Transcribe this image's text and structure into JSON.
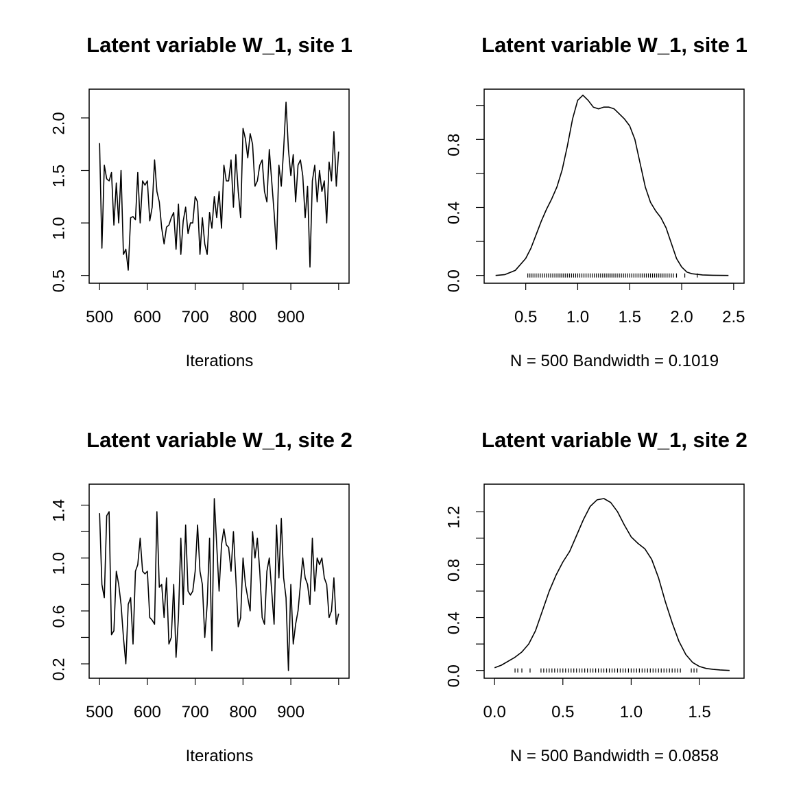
{
  "chart_data": [
    {
      "type": "line",
      "title": "Latent variable W_1, site 1",
      "xlabel": "Iterations",
      "ylabel": "",
      "xlim": [
        500,
        1000
      ],
      "ylim": [
        0.5,
        2.2
      ],
      "x_ticks": [
        500,
        600,
        700,
        800,
        900
      ],
      "y_ticks": [
        0.5,
        1.0,
        1.5,
        2.0
      ],
      "x_tick_labels": [
        "500",
        "600",
        "700",
        "800",
        "900"
      ],
      "y_tick_labels": [
        "0.5",
        "1.0",
        "1.5",
        "2.0"
      ],
      "grid": false,
      "series": [
        {
          "x": [
            500,
            505,
            510,
            515,
            520,
            525,
            530,
            535,
            540,
            545,
            550,
            555,
            560,
            565,
            570,
            575,
            580,
            585,
            590,
            595,
            600,
            605,
            610,
            615,
            620,
            625,
            630,
            635,
            640,
            645,
            650,
            655,
            660,
            665,
            670,
            675,
            680,
            685,
            690,
            695,
            700,
            705,
            710,
            715,
            720,
            725,
            730,
            735,
            740,
            745,
            750,
            755,
            760,
            765,
            770,
            775,
            780,
            785,
            790,
            795,
            800,
            805,
            810,
            815,
            820,
            825,
            830,
            835,
            840,
            845,
            850,
            855,
            860,
            865,
            870,
            875,
            880,
            885,
            890,
            895,
            900,
            905,
            910,
            915,
            920,
            925,
            930,
            935,
            940,
            945,
            950,
            955,
            960,
            965,
            970,
            975,
            980,
            985,
            990,
            995,
            1000
          ],
          "values": [
            1.76,
            0.76,
            1.55,
            1.42,
            1.4,
            1.48,
            0.98,
            1.38,
            1.0,
            1.5,
            0.7,
            0.75,
            0.55,
            1.05,
            1.06,
            1.03,
            1.48,
            1.0,
            1.4,
            1.36,
            1.4,
            1.02,
            1.15,
            1.6,
            1.3,
            1.2,
            0.95,
            0.8,
            0.96,
            0.98,
            1.05,
            1.1,
            0.75,
            1.18,
            0.7,
            1.02,
            1.15,
            0.9,
            1.0,
            1.0,
            1.25,
            1.2,
            0.7,
            1.05,
            0.8,
            0.7,
            1.1,
            0.95,
            1.25,
            1.05,
            1.3,
            0.95,
            1.55,
            1.4,
            1.4,
            1.6,
            1.15,
            1.65,
            1.3,
            1.05,
            1.9,
            1.8,
            1.62,
            1.85,
            1.75,
            1.35,
            1.4,
            1.55,
            1.6,
            1.3,
            1.2,
            1.7,
            1.4,
            1.1,
            0.75,
            1.55,
            1.35,
            1.7,
            2.15,
            1.7,
            1.45,
            1.65,
            1.2,
            1.55,
            1.6,
            1.45,
            1.05,
            1.35,
            0.58,
            1.4,
            1.55,
            1.2,
            1.5,
            1.3,
            1.4,
            1.0,
            1.58,
            1.4,
            1.87,
            1.35,
            1.68
          ]
        }
      ]
    },
    {
      "type": "area",
      "title": "Latent variable W_1, site 1",
      "xlabel": "N = 500   Bandwidth = 0.1019",
      "ylabel": "",
      "xlim": [
        0.2,
        2.5
      ],
      "ylim": [
        0,
        1.05
      ],
      "x_ticks": [
        0.5,
        1.0,
        1.5,
        2.0,
        2.5
      ],
      "y_ticks": [
        0.0,
        0.2,
        0.4,
        0.6,
        0.8,
        1.0
      ],
      "x_tick_labels": [
        "0.5",
        "1.0",
        "1.5",
        "2.0",
        "2.5"
      ],
      "y_tick_labels": [
        "0.0",
        "",
        "0.4",
        "",
        "0.8",
        ""
      ],
      "grid": false,
      "series": [
        {
          "x": [
            0.21,
            0.3,
            0.4,
            0.5,
            0.55,
            0.6,
            0.65,
            0.7,
            0.75,
            0.8,
            0.85,
            0.9,
            0.95,
            1.0,
            1.05,
            1.1,
            1.15,
            1.2,
            1.25,
            1.3,
            1.35,
            1.4,
            1.45,
            1.5,
            1.55,
            1.6,
            1.65,
            1.7,
            1.75,
            1.8,
            1.85,
            1.9,
            1.95,
            2.0,
            2.05,
            2.1,
            2.2,
            2.3,
            2.45
          ],
          "values": [
            0.0,
            0.005,
            0.03,
            0.1,
            0.16,
            0.24,
            0.32,
            0.39,
            0.45,
            0.52,
            0.62,
            0.76,
            0.92,
            1.03,
            1.06,
            1.03,
            0.99,
            0.98,
            0.99,
            0.99,
            0.98,
            0.95,
            0.92,
            0.88,
            0.8,
            0.66,
            0.52,
            0.43,
            0.38,
            0.34,
            0.28,
            0.19,
            0.1,
            0.05,
            0.02,
            0.01,
            0.003,
            0.001,
            0.0
          ]
        }
      ],
      "rug": [
        0.52,
        0.54,
        0.56,
        0.58,
        0.6,
        0.62,
        0.64,
        0.66,
        0.68,
        0.7,
        0.72,
        0.74,
        0.76,
        0.78,
        0.8,
        0.82,
        0.84,
        0.86,
        0.88,
        0.9,
        0.92,
        0.94,
        0.96,
        0.98,
        1.0,
        1.02,
        1.04,
        1.06,
        1.08,
        1.1,
        1.12,
        1.14,
        1.16,
        1.18,
        1.2,
        1.22,
        1.24,
        1.26,
        1.28,
        1.3,
        1.32,
        1.34,
        1.36,
        1.38,
        1.4,
        1.42,
        1.44,
        1.46,
        1.48,
        1.5,
        1.52,
        1.54,
        1.56,
        1.58,
        1.6,
        1.62,
        1.64,
        1.66,
        1.68,
        1.7,
        1.72,
        1.74,
        1.76,
        1.78,
        1.8,
        1.82,
        1.84,
        1.86,
        1.88,
        1.9,
        1.92,
        1.95,
        2.03,
        2.15
      ]
    },
    {
      "type": "line",
      "title": "Latent variable W_1, site 2",
      "xlabel": "Iterations",
      "ylabel": "",
      "xlim": [
        500,
        1000
      ],
      "ylim": [
        0.15,
        1.5
      ],
      "x_ticks": [
        500,
        600,
        700,
        800,
        900
      ],
      "y_ticks": [
        0.2,
        0.4,
        0.6,
        0.8,
        1.0,
        1.2,
        1.4
      ],
      "x_tick_labels": [
        "500",
        "600",
        "700",
        "800",
        "900"
      ],
      "y_tick_labels": [
        "0.2",
        "",
        "0.6",
        "",
        "1.0",
        "",
        "1.4"
      ],
      "grid": false,
      "series": [
        {
          "x": [
            500,
            505,
            510,
            515,
            520,
            525,
            530,
            535,
            540,
            545,
            550,
            555,
            560,
            565,
            570,
            575,
            580,
            585,
            590,
            595,
            600,
            605,
            610,
            615,
            620,
            625,
            630,
            635,
            640,
            645,
            650,
            655,
            660,
            665,
            670,
            675,
            680,
            685,
            690,
            695,
            700,
            705,
            710,
            715,
            720,
            725,
            730,
            735,
            740,
            745,
            750,
            755,
            760,
            765,
            770,
            775,
            780,
            785,
            790,
            795,
            800,
            805,
            810,
            815,
            820,
            825,
            830,
            835,
            840,
            845,
            850,
            855,
            860,
            865,
            870,
            875,
            880,
            885,
            890,
            895,
            900,
            905,
            910,
            915,
            920,
            925,
            930,
            935,
            940,
            945,
            950,
            955,
            960,
            965,
            970,
            975,
            980,
            985,
            990,
            995,
            1000
          ],
          "values": [
            1.34,
            0.8,
            0.7,
            1.32,
            1.35,
            0.42,
            0.45,
            0.9,
            0.8,
            0.65,
            0.4,
            0.2,
            0.65,
            0.7,
            0.35,
            0.9,
            0.95,
            1.15,
            0.9,
            0.88,
            0.9,
            0.55,
            0.53,
            0.5,
            1.35,
            0.78,
            0.8,
            0.55,
            0.85,
            0.35,
            0.4,
            0.8,
            0.25,
            0.55,
            1.15,
            0.65,
            1.25,
            0.75,
            0.72,
            0.75,
            0.9,
            1.25,
            0.9,
            0.8,
            0.4,
            0.65,
            1.15,
            0.3,
            1.45,
            1.1,
            0.75,
            1.1,
            1.22,
            1.1,
            1.08,
            0.9,
            1.2,
            0.85,
            0.48,
            0.55,
            1.0,
            0.8,
            0.7,
            0.6,
            1.2,
            1.0,
            1.15,
            0.9,
            0.55,
            0.5,
            0.9,
            1.0,
            0.75,
            0.5,
            1.25,
            0.85,
            1.3,
            0.85,
            0.7,
            0.15,
            0.8,
            0.35,
            0.5,
            0.6,
            0.8,
            1.0,
            0.85,
            0.8,
            0.65,
            1.15,
            0.75,
            1.0,
            0.95,
            1.0,
            0.85,
            0.8,
            0.55,
            0.6,
            0.85,
            0.5,
            0.58
          ]
        }
      ]
    },
    {
      "type": "area",
      "title": "Latent variable W_1, site 2",
      "xlabel": "N = 500   Bandwidth = 0.0858",
      "ylabel": "",
      "xlim": [
        0.0,
        1.75
      ],
      "ylim": [
        0,
        1.35
      ],
      "x_ticks": [
        0.0,
        0.5,
        1.0,
        1.5
      ],
      "y_ticks": [
        0.0,
        0.2,
        0.4,
        0.6,
        0.8,
        1.0,
        1.2
      ],
      "x_tick_labels": [
        "0.0",
        "0.5",
        "1.0",
        "1.5"
      ],
      "y_tick_labels": [
        "0.0",
        "",
        "0.4",
        "",
        "0.8",
        "",
        "1.2"
      ],
      "grid": false,
      "series": [
        {
          "x": [
            0.0,
            0.05,
            0.1,
            0.15,
            0.2,
            0.25,
            0.3,
            0.35,
            0.4,
            0.45,
            0.5,
            0.55,
            0.6,
            0.65,
            0.7,
            0.75,
            0.8,
            0.85,
            0.9,
            0.95,
            1.0,
            1.05,
            1.1,
            1.15,
            1.2,
            1.25,
            1.3,
            1.35,
            1.4,
            1.45,
            1.5,
            1.55,
            1.6,
            1.65,
            1.72
          ],
          "values": [
            0.02,
            0.04,
            0.07,
            0.1,
            0.14,
            0.2,
            0.3,
            0.45,
            0.6,
            0.72,
            0.82,
            0.9,
            1.02,
            1.14,
            1.24,
            1.29,
            1.3,
            1.27,
            1.2,
            1.1,
            1.01,
            0.96,
            0.92,
            0.84,
            0.7,
            0.52,
            0.36,
            0.22,
            0.12,
            0.06,
            0.03,
            0.015,
            0.008,
            0.004,
            0.0
          ]
        }
      ],
      "rug": [
        0.15,
        0.17,
        0.2,
        0.26,
        0.34,
        0.36,
        0.38,
        0.4,
        0.42,
        0.44,
        0.46,
        0.48,
        0.5,
        0.52,
        0.54,
        0.56,
        0.58,
        0.6,
        0.62,
        0.64,
        0.66,
        0.68,
        0.7,
        0.72,
        0.74,
        0.76,
        0.78,
        0.8,
        0.82,
        0.84,
        0.86,
        0.88,
        0.9,
        0.92,
        0.94,
        0.96,
        0.98,
        1.0,
        1.02,
        1.04,
        1.06,
        1.08,
        1.1,
        1.12,
        1.14,
        1.16,
        1.18,
        1.2,
        1.22,
        1.24,
        1.26,
        1.28,
        1.3,
        1.32,
        1.34,
        1.36,
        1.44,
        1.46,
        1.48
      ]
    }
  ]
}
